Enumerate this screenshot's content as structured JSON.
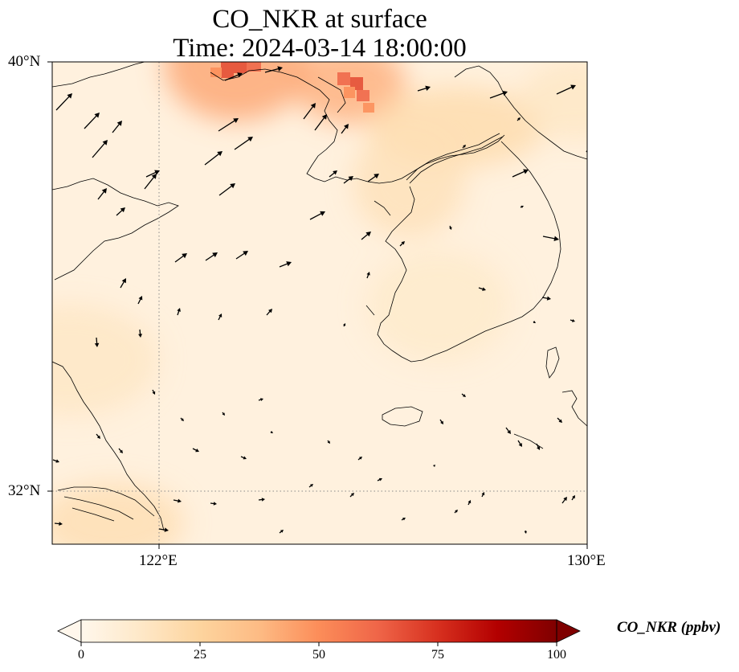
{
  "title_line1": "CO_NKR at surface",
  "title_line2": "Time: 2024-03-14 18:00:00",
  "axes": {
    "lon_range": [
      121,
      130
    ],
    "lat_range": [
      31.1,
      40
    ],
    "x_tick_labels": [
      "122°E",
      "130°E"
    ],
    "y_tick_labels": [
      "40°N",
      "32°N"
    ],
    "gridlines": "dotted at 122°E and 32°N"
  },
  "colorbar": {
    "label": "CO_NKR (ppbv)",
    "colormap": "OrRd",
    "range": [
      0,
      100
    ],
    "ticks": [
      "0",
      "25",
      "50",
      "75",
      "100"
    ],
    "extend": "both",
    "colors": [
      "#fff7ec",
      "#fee8c8",
      "#fdd49e",
      "#fdbb84",
      "#fc8d59",
      "#ef6548",
      "#d7301f",
      "#b30000",
      "#7f0000"
    ]
  },
  "field": {
    "background_value_ppbv": 5,
    "hotspots": [
      {
        "lat": 39.6,
        "lon": 126.0,
        "value_ppbv": 42
      },
      {
        "lat": 39.95,
        "lon": 124.1,
        "value_ppbv": 45
      },
      {
        "lat": 38.8,
        "lon": 127.8,
        "value_ppbv": 22
      },
      {
        "lat": 37.8,
        "lon": 127.0,
        "value_ppbv": 18
      },
      {
        "lat": 31.5,
        "lon": 122.0,
        "value_ppbv": 20
      },
      {
        "lat": 34.5,
        "lon": 121.3,
        "value_ppbv": 14
      },
      {
        "lat": 39.3,
        "lon": 129.8,
        "value_ppbv": 14
      },
      {
        "lat": 35.5,
        "lon": 127.5,
        "value_ppbv": 12
      }
    ]
  },
  "wind_vectors_description": "black arrows: strong west-southwesterly in north, weak variable southeasterly in south"
}
